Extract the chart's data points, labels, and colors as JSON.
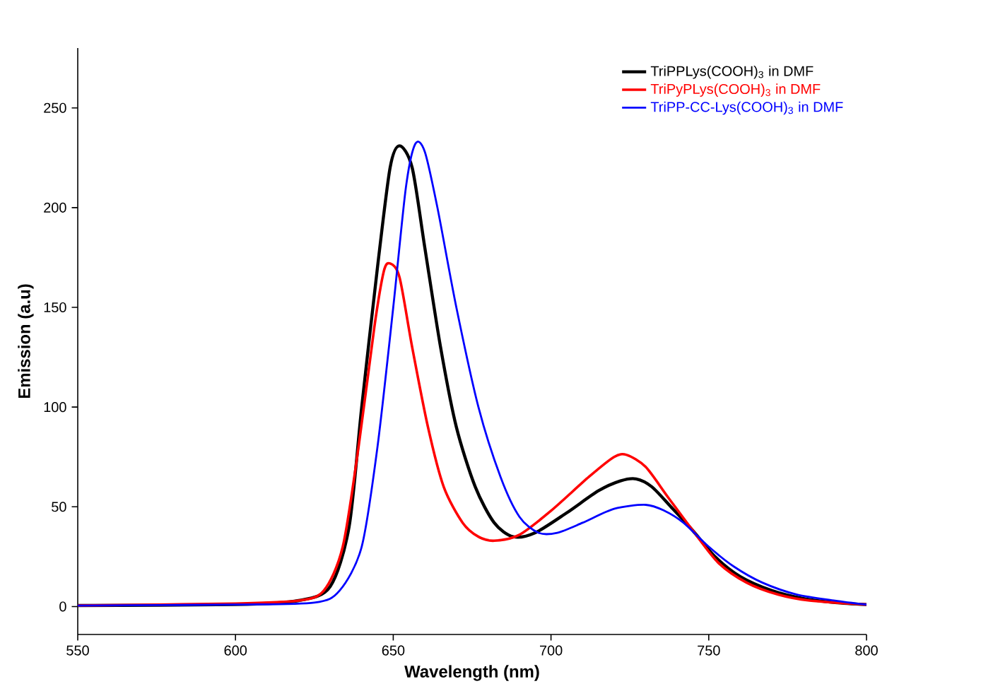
{
  "chart_data": {
    "type": "line",
    "xlabel": "Wavelength (nm)",
    "ylabel": "Emission (a.u)",
    "xlim": [
      550,
      800
    ],
    "ylim": [
      -14,
      280
    ],
    "xticks": [
      550,
      600,
      650,
      700,
      750,
      800
    ],
    "yticks": [
      0,
      50,
      100,
      150,
      200,
      250
    ],
    "grid": false,
    "legend": "top right",
    "marker": "none",
    "line_style": "solid",
    "series": [
      {
        "name": "TriPPLys(COOH)$_{3}$ in DMF",
        "color": "#000000",
        "x": [
          550,
          600,
          620,
          630,
          636,
          640,
          645,
          649,
          652,
          656,
          660,
          665,
          670,
          676,
          682,
          688,
          695,
          705,
          715,
          722,
          727,
          732,
          738,
          745,
          752,
          760,
          770,
          780,
          790,
          800
        ],
        "values": [
          0.5,
          1,
          3,
          10,
          40,
          100,
          170,
          220,
          231,
          220,
          180,
          130,
          90,
          60,
          42,
          35,
          37,
          47,
          58,
          63,
          64,
          60,
          50,
          38,
          25,
          15,
          8,
          4,
          2,
          1
        ]
      },
      {
        "name": "TriPyPLys(COOH)$_{3}$ in DMF",
        "color": "#ff0000",
        "x": [
          550,
          600,
          620,
          628,
          634,
          639,
          644,
          647,
          649,
          652,
          656,
          661,
          666,
          672,
          677,
          682,
          690,
          700,
          712,
          720,
          724,
          730,
          737,
          745,
          753,
          762,
          772,
          782,
          800
        ],
        "values": [
          0.5,
          1.5,
          3,
          8,
          30,
          80,
          140,
          168,
          172,
          165,
          130,
          90,
          60,
          42,
          35,
          33,
          36,
          48,
          65,
          75,
          76,
          70,
          55,
          38,
          22,
          12,
          6,
          3,
          1
        ]
      },
      {
        "name": "TriPP-CC-Lys(COOH)$_{3}$ in DMF",
        "color": "#0000ff",
        "x": [
          550,
          600,
          625,
          633,
          640,
          645,
          650,
          654,
          657,
          660,
          664,
          670,
          677,
          684,
          690,
          696,
          702,
          710,
          720,
          730,
          736,
          742,
          750,
          758,
          767,
          778,
          790,
          800
        ],
        "values": [
          0.5,
          1,
          2,
          8,
          30,
          80,
          150,
          210,
          232,
          228,
          200,
          150,
          100,
          65,
          45,
          37,
          37,
          42,
          49,
          51,
          48,
          42,
          30,
          20,
          12,
          6,
          3,
          1
        ]
      }
    ]
  }
}
